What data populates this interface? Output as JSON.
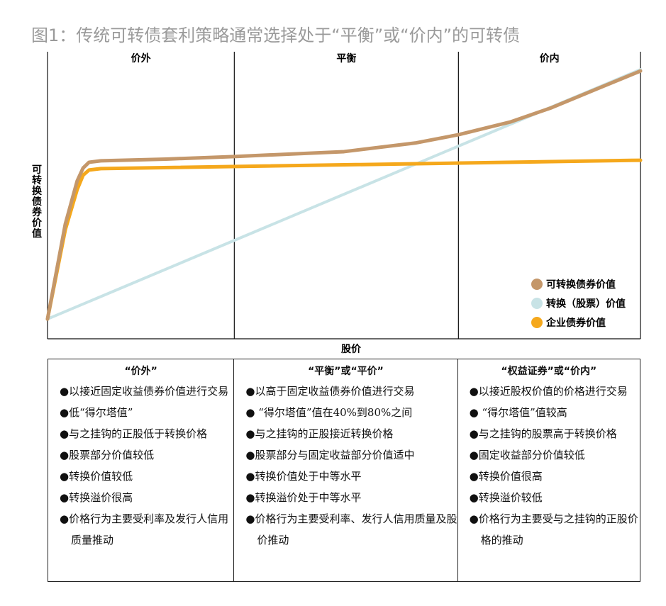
{
  "title": "图1：传统可转债套利策略通常选择处于“平衡”或“价内”的可转债",
  "chart_data": {
    "type": "line",
    "title": "图1：传统可转债套利策略通常选择处于“平衡”或“价内”的可转债",
    "xlabel": "股价",
    "ylabel": "可转换债券价值",
    "xlim": [
      0,
      100
    ],
    "ylim": [
      0,
      100
    ],
    "regions": [
      "价外",
      "平衡",
      "价内"
    ],
    "region_bounds": [
      31.5,
      69.3
    ],
    "legend_position": "bottom-right",
    "series": [
      {
        "name": "可转换债券价值",
        "color": "#c4976a",
        "x": [
          0,
          3,
          5,
          6,
          7,
          9,
          20,
          31.5,
          50,
          62,
          69.3,
          78,
          85,
          92,
          100
        ],
        "y": [
          6.9,
          40,
          55,
          59.5,
          61.5,
          62,
          62.6,
          63.5,
          65.2,
          68.2,
          71.1,
          75.5,
          80.5,
          86.5,
          93.3
        ]
      },
      {
        "name": "转换（股票）价值",
        "color": "#c8e3e6",
        "x": [
          0,
          100
        ],
        "y": [
          6.9,
          93.8
        ]
      },
      {
        "name": "企业债券价值",
        "color": "#f5a81c",
        "x": [
          0,
          3,
          5,
          6,
          7,
          9,
          100
        ],
        "y": [
          6.9,
          38,
          52,
          57,
          58.8,
          59.3,
          62.2
        ]
      }
    ]
  },
  "table": [
    {
      "header": "“价外”",
      "items": [
        "以接近固定收益债券价值进行交易",
        "低“得尔塔值”",
        "与之挂钩的正股低于转换价格",
        "股票部分价值较低",
        "转换价值较低",
        "转换溢价很高",
        "价格行为主要受利率及发行人信用质量推动"
      ]
    },
    {
      "header": "“平衡”或“平价”",
      "items": [
        "以高于固定收益债券价值进行交易",
        " “得尔塔值”值在40%到80%之间",
        "与之挂钩的正股接近转换价格",
        "股票部分与固定收益部分价值适中",
        "转换价值处于中等水平",
        "转换溢价处于中等水平",
        "价格行为主要受利率、发行人信用质量及股价推动"
      ]
    },
    {
      "header": "“权益证券”或“价内”",
      "items": [
        "以接近股权价值的价格进行交易",
        " “得尔塔值”值较高",
        "与之挂钩的股票高于转换价格",
        "固定收益部分价值较低",
        "转换价值很高",
        "转换溢价较低",
        "价格行为主要受与之挂钩的正股价格的推动"
      ]
    }
  ]
}
